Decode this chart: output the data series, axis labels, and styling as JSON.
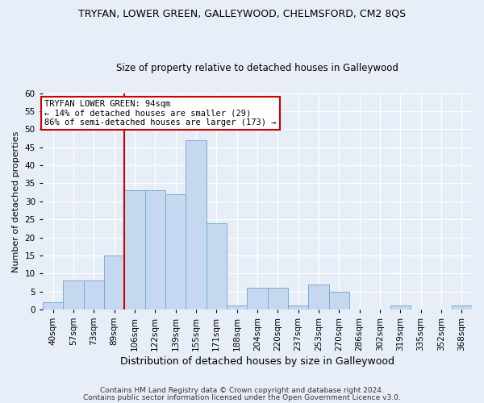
{
  "title1": "TRYFAN, LOWER GREEN, GALLEYWOOD, CHELMSFORD, CM2 8QS",
  "title2": "Size of property relative to detached houses in Galleywood",
  "xlabel": "Distribution of detached houses by size in Galleywood",
  "ylabel": "Number of detached properties",
  "footer1": "Contains HM Land Registry data © Crown copyright and database right 2024.",
  "footer2": "Contains public sector information licensed under the Open Government Licence v3.0.",
  "annotation_line1": "TRYFAN LOWER GREEN: 94sqm",
  "annotation_line2": "← 14% of detached houses are smaller (29)",
  "annotation_line3": "86% of semi-detached houses are larger (173) →",
  "bar_color": "#c5d8f0",
  "bar_edge_color": "#7aadd4",
  "bg_color": "#e8eef8",
  "red_line_color": "#cc0000",
  "annotation_box_color": "#ffffff",
  "annotation_box_edge": "#cc0000",
  "categories": [
    "40sqm",
    "57sqm",
    "73sqm",
    "89sqm",
    "106sqm",
    "122sqm",
    "139sqm",
    "155sqm",
    "171sqm",
    "188sqm",
    "204sqm",
    "220sqm",
    "237sqm",
    "253sqm",
    "270sqm",
    "286sqm",
    "302sqm",
    "319sqm",
    "335sqm",
    "352sqm",
    "368sqm"
  ],
  "values": [
    2,
    8,
    8,
    15,
    33,
    33,
    32,
    47,
    24,
    1,
    6,
    6,
    1,
    7,
    5,
    0,
    0,
    1,
    0,
    0,
    1
  ],
  "ylim": [
    0,
    60
  ],
  "yticks": [
    0,
    5,
    10,
    15,
    20,
    25,
    30,
    35,
    40,
    45,
    50,
    55,
    60
  ],
  "red_line_x": 3.5,
  "bar_width": 1.0,
  "title1_fontsize": 9,
  "title2_fontsize": 8.5,
  "ylabel_fontsize": 8,
  "xlabel_fontsize": 9,
  "tick_fontsize": 7.5,
  "annot_fontsize": 7.5,
  "footer_fontsize": 6.5
}
